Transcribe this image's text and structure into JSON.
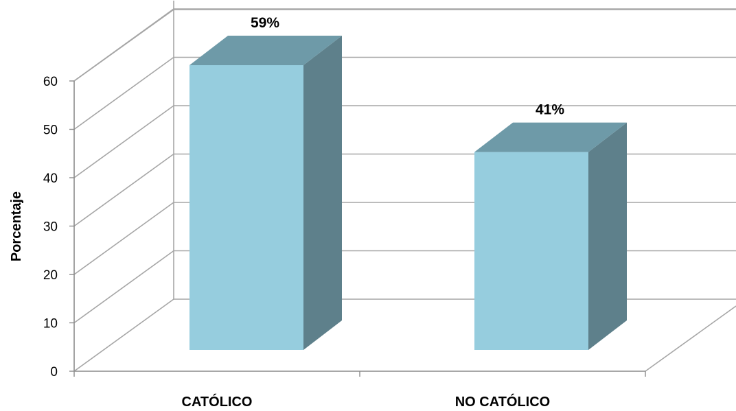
{
  "chart_data": {
    "type": "bar",
    "title": "",
    "xlabel": "",
    "ylabel": "Porcentaje",
    "categories": [
      "CATÓLICO",
      "NO CATÓLICO"
    ],
    "values": [
      59,
      41
    ],
    "data_labels": [
      "59%",
      "41%"
    ],
    "ylim": [
      0,
      60
    ],
    "yticks": [
      "0",
      "10",
      "20",
      "30",
      "40",
      "50",
      "60"
    ],
    "grid": true,
    "legend": "none",
    "style": "3d-column"
  },
  "colors": {
    "bar_front": "#96CDDE",
    "bar_side": "#5E808B",
    "bar_top": "#6E9AA8",
    "grid": "#A6A6A6",
    "axis": "#8C8C8C"
  }
}
